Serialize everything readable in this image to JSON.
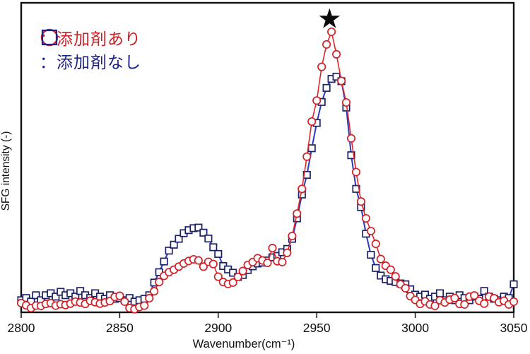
{
  "figure": {
    "background": "#ffffff",
    "plot_border_color": "#111111"
  },
  "legend": {
    "items": [
      {
        "symbol": "circle-icon",
        "label": "：添加剤あり",
        "color": "#cb2127"
      },
      {
        "symbol": "square-icon",
        "label": "：添加剤なし",
        "color": "#1e2287"
      }
    ]
  },
  "chart_data": {
    "type": "line",
    "title": "",
    "xlabel": "Wavenumber(cm⁻¹)",
    "ylabel": "SFG intensity (-)",
    "xlim": [
      2800,
      3050
    ],
    "ylim": [
      0,
      1.1
    ],
    "x_ticks": [
      2800,
      2850,
      2900,
      2950,
      3000,
      3050
    ],
    "y_ticks": [],
    "grid": false,
    "legend_position": "top-left",
    "annotations": [
      {
        "type": "star",
        "x": 2956.5,
        "y": 1.045,
        "color": "#0a0a0a",
        "meaning": "marks main peak of red series at ~2957 cm⁻¹"
      }
    ],
    "x": [
      2800,
      2802.5,
      2805,
      2807.5,
      2810,
      2812.5,
      2815,
      2817.5,
      2820,
      2822.5,
      2825,
      2827.5,
      2830,
      2832.5,
      2835,
      2837.5,
      2840,
      2842.5,
      2845,
      2847.5,
      2850,
      2852.5,
      2855,
      2857.5,
      2860,
      2862.5,
      2865,
      2867.5,
      2870,
      2872.5,
      2875,
      2877.5,
      2880,
      2882.5,
      2885,
      2887.5,
      2890,
      2892.5,
      2895,
      2897.5,
      2900,
      2902.5,
      2905,
      2907.5,
      2910,
      2912.5,
      2915,
      2917.5,
      2920,
      2922.5,
      2925,
      2927.5,
      2930,
      2932.5,
      2935,
      2937.5,
      2940,
      2942.5,
      2945,
      2947.5,
      2950,
      2952.5,
      2955,
      2957.5,
      2960,
      2962.5,
      2965,
      2967.5,
      2970,
      2972.5,
      2975,
      2977.5,
      2980,
      2982.5,
      2985,
      2987.5,
      2990,
      2992.5,
      2995,
      2997.5,
      3000,
      3002.5,
      3005,
      3007.5,
      3010,
      3012.5,
      3015,
      3017.5,
      3020,
      3022.5,
      3025,
      3027.5,
      3030,
      3032.5,
      3035,
      3037.5,
      3040,
      3042.5,
      3045,
      3047.5,
      3050
    ],
    "series": [
      {
        "name": "添加剤あり",
        "key": "with-additive",
        "marker": "circle",
        "line_color": "#e02428",
        "marker_color": "#cf2127",
        "line_width": 1.6,
        "values": [
          0.033,
          0.025,
          0.015,
          0.024,
          0.023,
          0.03,
          0.033,
          0.024,
          0.029,
          0.026,
          0.031,
          0.038,
          0.035,
          0.03,
          0.041,
          0.036,
          0.031,
          0.035,
          0.04,
          0.055,
          0.059,
          0.038,
          0.015,
          0.011,
          0.019,
          0.024,
          0.05,
          0.075,
          0.108,
          0.13,
          0.143,
          0.152,
          0.163,
          0.174,
          0.183,
          0.189,
          0.185,
          0.163,
          0.18,
          0.172,
          0.127,
          0.108,
          0.101,
          0.106,
          0.126,
          0.147,
          0.169,
          0.179,
          0.193,
          0.185,
          0.176,
          0.229,
          0.182,
          0.179,
          0.212,
          0.272,
          0.352,
          0.44,
          0.555,
          0.68,
          0.755,
          0.875,
          0.955,
          1.0,
          0.92,
          0.825,
          0.748,
          0.62,
          0.5,
          0.395,
          0.335,
          0.29,
          0.244,
          0.19,
          0.166,
          0.152,
          0.128,
          0.1,
          0.086,
          0.058,
          0.044,
          0.03,
          0.039,
          0.028,
          0.023,
          0.043,
          0.035,
          0.045,
          0.051,
          0.03,
          0.028,
          0.056,
          0.06,
          0.041,
          0.031,
          0.056,
          0.05,
          0.036,
          0.041,
          0.028,
          0.038
        ]
      },
      {
        "name": "添加剤なし",
        "key": "without-additive",
        "marker": "square",
        "line_color": "#2f37bd",
        "marker_color": "#1b2166",
        "line_width": 2,
        "values": [
          0.043,
          0.051,
          0.038,
          0.061,
          0.043,
          0.061,
          0.068,
          0.056,
          0.073,
          0.061,
          0.068,
          0.056,
          0.076,
          0.061,
          0.051,
          0.068,
          0.056,
          0.048,
          0.061,
          0.048,
          0.051,
          0.043,
          0.051,
          0.038,
          0.043,
          0.048,
          0.061,
          0.106,
          0.143,
          0.181,
          0.22,
          0.241,
          0.262,
          0.282,
          0.293,
          0.3,
          0.302,
          0.284,
          0.263,
          0.232,
          0.208,
          0.165,
          0.153,
          0.141,
          0.126,
          0.133,
          0.151,
          0.164,
          0.174,
          0.177,
          0.185,
          0.196,
          0.201,
          0.214,
          0.226,
          0.262,
          0.335,
          0.42,
          0.49,
          0.585,
          0.675,
          0.75,
          0.8,
          0.832,
          0.84,
          0.824,
          0.73,
          0.56,
          0.44,
          0.375,
          0.28,
          0.205,
          0.158,
          0.131,
          0.118,
          0.112,
          0.108,
          0.103,
          0.1,
          0.082,
          0.063,
          0.056,
          0.063,
          0.048,
          0.056,
          0.068,
          0.043,
          0.056,
          0.043,
          0.061,
          0.051,
          0.043,
          0.056,
          0.048,
          0.076,
          0.056,
          0.048,
          0.043,
          0.056,
          0.051,
          0.1
        ]
      }
    ]
  }
}
